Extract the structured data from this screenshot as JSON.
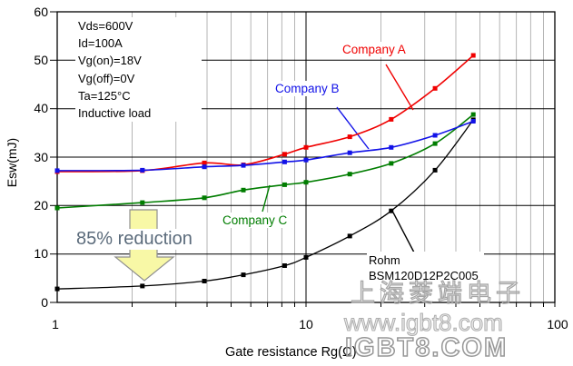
{
  "conditions": {
    "lines": [
      "Vds=600V",
      "Id=100A",
      "Vg(on)=18V",
      "Vg(off)=0V",
      "Ta=125°C",
      "Inductive load"
    ]
  },
  "series_labels": {
    "company_a": "Company A",
    "company_b": "Company B",
    "company_c": "Company C",
    "rohm_line1": "Rohm",
    "rohm_line2": "BSM120D12P2C005"
  },
  "annotation": {
    "reduction": "85% reduction"
  },
  "axes": {
    "x_title": "Gate resistance Rg(Ω)",
    "y_title": "Esw(mJ)",
    "x_tick_labels": [
      "1",
      "10",
      "100"
    ],
    "y_tick_labels": [
      "60",
      "50",
      "40",
      "30",
      "20",
      "10",
      "0"
    ]
  },
  "watermark": {
    "company_cn": "上海菱端电子",
    "website": "www.igbt8.com",
    "website_large": "IGBT8.COM"
  },
  "chart_data": {
    "type": "line",
    "xscale": "log",
    "xlim": [
      1,
      100
    ],
    "ylim": [
      0,
      60
    ],
    "xticks": [
      1,
      10,
      100
    ],
    "yticks": [
      0,
      10,
      20,
      30,
      40,
      50,
      60
    ],
    "grid": "major-horizontal-black, minor-vertical-gray",
    "xlabel": "Gate resistance Rg(Ω)",
    "ylabel": "Esw(mJ)",
    "x": [
      1,
      2.2,
      3.9,
      5.6,
      8.2,
      10,
      15,
      22,
      33,
      47
    ],
    "series": [
      {
        "name": "Company A",
        "color": "#f00000",
        "values": [
          27.0,
          27.2,
          28.8,
          28.4,
          30.6,
          32.0,
          34.2,
          37.8,
          44.2,
          51.0
        ]
      },
      {
        "name": "Rohm BSM120D12P2C005",
        "color": "#000000",
        "values": [
          2.8,
          3.4,
          4.4,
          5.7,
          7.6,
          9.3,
          13.7,
          18.9,
          27.3,
          37.7
        ]
      },
      {
        "name": "Company C",
        "color": "#007d00",
        "values": [
          19.5,
          20.6,
          21.6,
          23.2,
          24.3,
          24.8,
          26.5,
          28.7,
          32.8,
          38.8
        ]
      },
      {
        "name": "Company B",
        "color": "#1212e8",
        "values": [
          27.2,
          27.3,
          28.0,
          28.3,
          29.0,
          29.4,
          30.9,
          32.0,
          34.5,
          37.4
        ]
      }
    ],
    "annotations": {
      "reduction_text": "85% reduction",
      "leader_lines": [
        {
          "series": "Company A",
          "from": [
            425,
            71
          ],
          "to": [
            455,
            121
          ]
        },
        {
          "series": "Company B",
          "from": [
            371,
            118
          ],
          "to": [
            406,
            164
          ]
        },
        {
          "series": "Company C",
          "from": [
            289,
            233
          ],
          "to": [
            297,
            204
          ]
        },
        {
          "series": "Rohm",
          "from": [
            456,
            278
          ],
          "to": [
            433,
            234
          ]
        }
      ]
    }
  }
}
